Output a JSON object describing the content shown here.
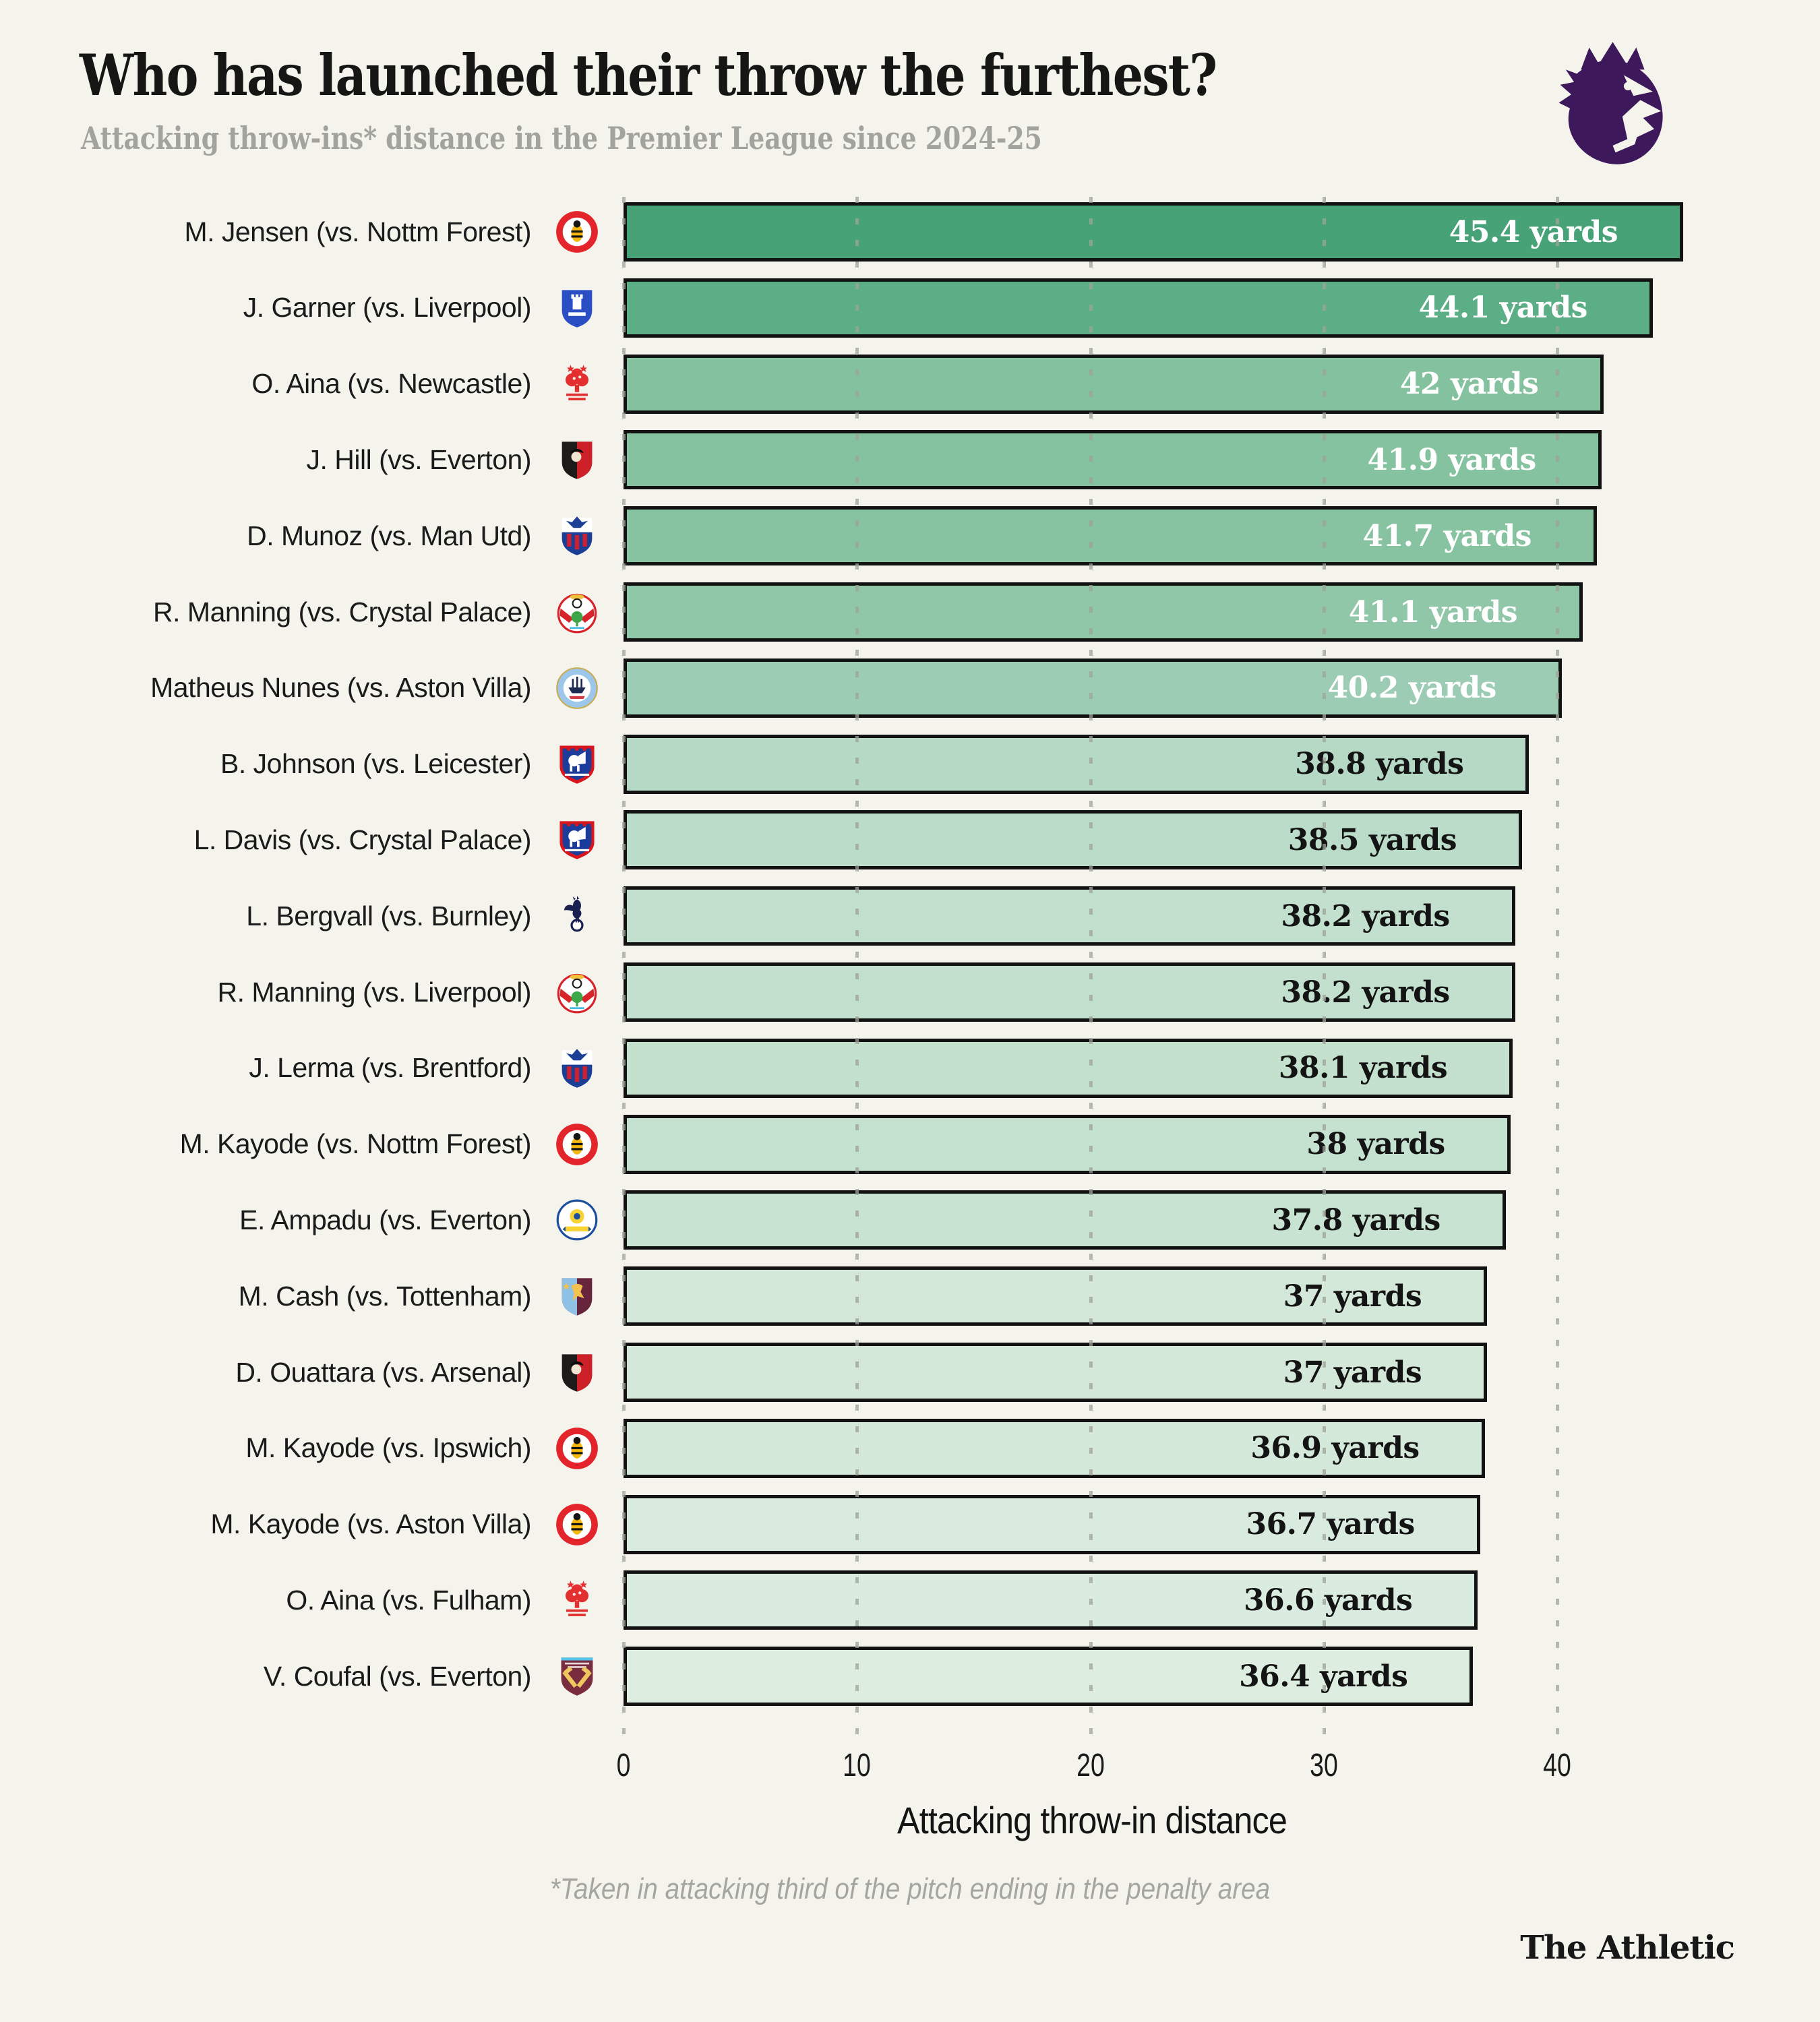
{
  "header": {
    "title": "Who has launched their throw the furthest?",
    "subtitle": "Attacking throw-ins* distance in the Premier League since 2024-25"
  },
  "logo": {
    "name": "premier-league-lion",
    "color": "#3d195b"
  },
  "chart_data": {
    "type": "bar",
    "orientation": "horizontal",
    "title": "Who has launched their throw the furthest?",
    "subtitle": "Attacking throw-ins* distance in the Premier League since 2024-25",
    "xlabel": "Attacking throw-in distance",
    "ylabel": "",
    "unit": "yards",
    "xlim": [
      0,
      48
    ],
    "x_ticks": [
      0,
      10,
      20,
      30,
      40
    ],
    "gridlines": [
      0,
      10,
      20,
      30,
      40
    ],
    "grid_style": "dotted-vertical",
    "rows": [
      {
        "label": "M. Jensen (vs. Nottm Forest)",
        "team": "brentford",
        "value": 45.4,
        "value_label": "45.4 yards",
        "bar_color": "#47a377",
        "text_color": "#ffffff"
      },
      {
        "label": "J. Garner (vs. Liverpool)",
        "team": "everton",
        "value": 44.1,
        "value_label": "44.1 yards",
        "bar_color": "#5cae86",
        "text_color": "#ffffff"
      },
      {
        "label": "O. Aina (vs. Newcastle)",
        "team": "nottm_forest",
        "value": 42,
        "value_label": "42 yards",
        "bar_color": "#84c19e",
        "text_color": "#ffffff"
      },
      {
        "label": "J. Hill (vs. Everton)",
        "team": "bournemouth",
        "value": 41.9,
        "value_label": "41.9 yards",
        "bar_color": "#85c29f",
        "text_color": "#ffffff"
      },
      {
        "label": "D. Munoz (vs. Man Utd)",
        "team": "crystal_palace",
        "value": 41.7,
        "value_label": "41.7 yards",
        "bar_color": "#88c3a1",
        "text_color": "#ffffff"
      },
      {
        "label": "R. Manning (vs. Crystal Palace)",
        "team": "southampton",
        "value": 41.1,
        "value_label": "41.1 yards",
        "bar_color": "#90c7a9",
        "text_color": "#ffffff"
      },
      {
        "label": "Matheus Nunes (vs. Aston Villa)",
        "team": "man_city",
        "value": 40.2,
        "value_label": "40.2 yards",
        "bar_color": "#9ccdb4",
        "text_color": "#ffffff"
      },
      {
        "label": "B. Johnson (vs. Leicester)",
        "team": "ipswich",
        "value": 38.8,
        "value_label": "38.8 yards",
        "bar_color": "#b5d9c4",
        "text_color": "#141414"
      },
      {
        "label": "L. Davis (vs. Crystal Palace)",
        "team": "ipswich",
        "value": 38.5,
        "value_label": "38.5 yards",
        "bar_color": "#badcc8",
        "text_color": "#141414"
      },
      {
        "label": "L. Bergvall (vs. Burnley)",
        "team": "tottenham",
        "value": 38.2,
        "value_label": "38.2 yards",
        "bar_color": "#c2e0cd",
        "text_color": "#141414"
      },
      {
        "label": "R. Manning (vs. Liverpool)",
        "team": "southampton",
        "value": 38.2,
        "value_label": "38.2 yards",
        "bar_color": "#c2e0cd",
        "text_color": "#141414"
      },
      {
        "label": "J. Lerma (vs. Brentford)",
        "team": "crystal_palace",
        "value": 38.1,
        "value_label": "38.1 yards",
        "bar_color": "#c4e1ce",
        "text_color": "#141414"
      },
      {
        "label": "M. Kayode (vs. Nottm Forest)",
        "team": "brentford",
        "value": 38,
        "value_label": "38 yards",
        "bar_color": "#c5e1cf",
        "text_color": "#141414"
      },
      {
        "label": "E. Ampadu (vs. Everton)",
        "team": "leeds",
        "value": 37.8,
        "value_label": "37.8 yards",
        "bar_color": "#c8e3d1",
        "text_color": "#141414"
      },
      {
        "label": "M. Cash (vs. Tottenham)",
        "team": "aston_villa",
        "value": 37,
        "value_label": "37 yards",
        "bar_color": "#d3e8d9",
        "text_color": "#141414"
      },
      {
        "label": "D. Ouattara (vs. Arsenal)",
        "team": "bournemouth",
        "value": 37,
        "value_label": "37 yards",
        "bar_color": "#d3e8d9",
        "text_color": "#141414"
      },
      {
        "label": "M. Kayode (vs. Ipswich)",
        "team": "brentford",
        "value": 36.9,
        "value_label": "36.9 yards",
        "bar_color": "#d5e9da",
        "text_color": "#141414"
      },
      {
        "label": "M. Kayode (vs. Aston Villa)",
        "team": "brentford",
        "value": 36.7,
        "value_label": "36.7 yards",
        "bar_color": "#d9ebde",
        "text_color": "#141414"
      },
      {
        "label": "O. Aina (vs. Fulham)",
        "team": "nottm_forest",
        "value": 36.6,
        "value_label": "36.6 yards",
        "bar_color": "#daecdf",
        "text_color": "#141414"
      },
      {
        "label": "V. Coufal (vs. Everton)",
        "team": "west_ham",
        "value": 36.4,
        "value_label": "36.4 yards",
        "bar_color": "#ddeee1",
        "text_color": "#141414"
      }
    ]
  },
  "axis": {
    "ticks": [
      "0",
      "10",
      "20",
      "30",
      "40"
    ],
    "label": "Attacking throw-in distance"
  },
  "footnote": "*Taken in attacking third of the pitch ending in the penalty area",
  "branding": "The Athletic",
  "colors": {
    "background": "#f4f4ed",
    "title": "#161615",
    "subtitle": "#a3a39d",
    "bar_border": "#121212",
    "gridline": "#9ea398",
    "pl_purple": "#3d195b"
  },
  "team_colors": {
    "brentford": [
      "#e3252b",
      "#f5b80e",
      "#ffffff"
    ],
    "everton": [
      "#2a4fc4",
      "#ffffff"
    ],
    "nottm_forest": [
      "#e42f30",
      "#f4f4ed"
    ],
    "bournemouth": [
      "#1c1b1a",
      "#ce2029",
      "#f0e6d2"
    ],
    "crystal_palace": [
      "#1b3f94",
      "#cf2032",
      "#ffffff"
    ],
    "southampton": [
      "#d8232a",
      "#3ca648",
      "#f0c23e",
      "#ffffff"
    ],
    "man_city": [
      "#9cc7ea",
      "#1d2b52",
      "#cf3b44",
      "#ffffff"
    ],
    "ipswich": [
      "#d6161c",
      "#1c3c9c",
      "#ffffff"
    ],
    "tottenham": [
      "#1a2050",
      "#ffffff"
    ],
    "leeds": [
      "#1d4f9e",
      "#f7d433",
      "#ffffff"
    ],
    "aston_villa": [
      "#67243d",
      "#8fc0e5",
      "#f2c14e"
    ],
    "west_ham": [
      "#7a2c3f",
      "#f0c75e",
      "#57c0e9"
    ]
  }
}
